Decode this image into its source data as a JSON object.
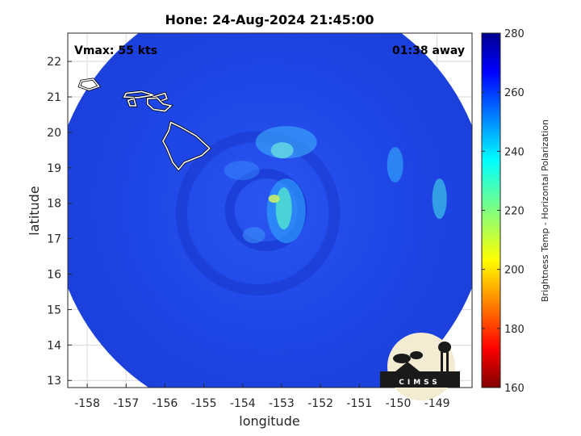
{
  "title": "Hone: 24-Aug-2024 21:45:00",
  "annotations": {
    "vmax": "Vmax: 55 kts",
    "time_away": "01:38 away"
  },
  "axes": {
    "xlabel": "longitude",
    "ylabel": "latitude",
    "xlim": [
      -158.5,
      -148.1
    ],
    "ylim": [
      12.8,
      22.8
    ],
    "xticks": [
      -158,
      -157,
      -156,
      -155,
      -154,
      -153,
      -152,
      -151,
      -150,
      -149
    ],
    "yticks": [
      13,
      14,
      15,
      16,
      17,
      18,
      19,
      20,
      21,
      22
    ],
    "grid": true
  },
  "colorbar": {
    "label": "Brightness Temp - Horizontal Polarization",
    "min": 160,
    "max": 280,
    "ticks": [
      160,
      180,
      200,
      220,
      240,
      260,
      280
    ],
    "colormap": "jet"
  },
  "scan": {
    "center_lon": -153.3,
    "center_lat": 17.9,
    "radius_deg": 5.6,
    "base_color": "#1e46e6"
  },
  "storm": {
    "center_lon": -153.4,
    "center_lat": 17.9
  },
  "logo": {
    "text": "CIMSS"
  },
  "colors": {
    "land_outline": "#ffffff",
    "land_fill": "#1e46e6"
  }
}
